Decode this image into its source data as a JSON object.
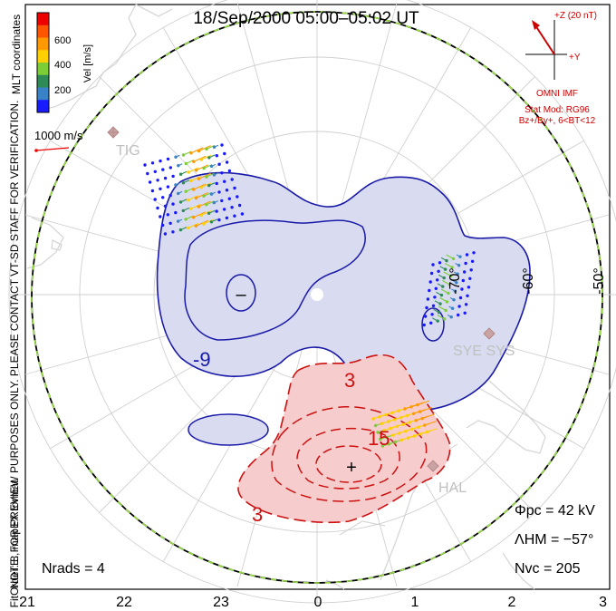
{
  "title": "18/Sep/2000 05:00–05:02 UT",
  "colorbar": {
    "label": "Vel [m/s]",
    "ticks": [
      "600",
      "400",
      "200"
    ],
    "colors": [
      "#1a1aff",
      "#3a82c6",
      "#2e8b57",
      "#7ccd36",
      "#ffd000",
      "#ff9900",
      "#ff5500",
      "#ee0000"
    ]
  },
  "coord_label": "MLT coordinates",
  "reference_vector_label": "1000 m/s",
  "side_note_1": "NOTE: FOR PREVIEW PURPOSES ONLY. PLEASE CONTACT VT-SD STAFF FOR VERIFICATION.",
  "side_note_2": "FitOrder: 8, mapEX format",
  "imf": {
    "z_label": "+Z (20 nT)",
    "y_label": "+Y",
    "source": "OMNI IMF",
    "model": "Stat Mod: RG96",
    "condition": "Bz+/By+, 6<BT<12"
  },
  "stations": [
    "TIG",
    "SYE SYS",
    "HAL"
  ],
  "lat_labels": [
    "-70°",
    "-60°",
    "-50°"
  ],
  "contour_labels": [
    "-9",
    "3",
    "15",
    "3"
  ],
  "extrema_symbols": [
    "–",
    "+"
  ],
  "stats": {
    "phi_pc": "Φpc = 42 kV",
    "lambda_hm": "ΛHM = −57°",
    "n_vc": "Nvc = 205",
    "n_rads": "Nrads = 4"
  },
  "mlt_ticks": [
    "21",
    "22",
    "23",
    "0",
    "1",
    "2",
    "3"
  ],
  "colors": {
    "negative_contour": "#1a1aa8",
    "negative_fill": "#d9dcf0",
    "positive_contour": "#cc1111",
    "positive_fill": "#f6cccc",
    "hmb_green": "#9ae045",
    "text_red": "#cc0000"
  }
}
